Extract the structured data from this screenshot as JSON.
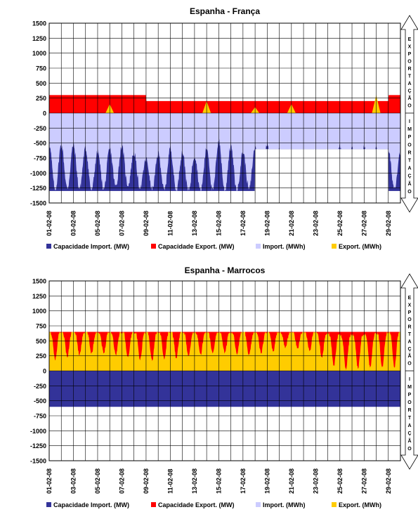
{
  "colors": {
    "import_capacity": "#333399",
    "export_capacity": "#ff0000",
    "import_flow": "#ccccff",
    "export_flow": "#ffcc00",
    "grid": "#000000"
  },
  "arrow_labels": {
    "up": "EXPORTAÇÃO",
    "down": "IMPORTAÇÃO"
  },
  "chart_data": [
    {
      "type": "area",
      "title": "Espanha - França",
      "xlabel": "",
      "ylabel": "",
      "ylim": [
        -1500,
        1500
      ],
      "yticks": [
        1500,
        1250,
        1000,
        750,
        500,
        250,
        0,
        -250,
        -500,
        -750,
        -1000,
        -1250,
        -1500
      ],
      "xlim": [
        "2008-02-01",
        "2008-03-01"
      ],
      "x_tick_labels": [
        "01-02-08",
        "03-02-08",
        "05-02-08",
        "07-02-08",
        "09-02-08",
        "11-02-08",
        "13-02-08",
        "15-02-08",
        "17-02-08",
        "19-02-08",
        "21-02-08",
        "23-02-08",
        "25-02-08",
        "27-02-08",
        "29-02-08"
      ],
      "grid": true,
      "legend_position": "bottom",
      "legend": [
        "Capacidade Import. (MW)",
        "Capacidade Export. (MW)",
        "Import. (MWh)",
        "Export. (MWh)"
      ],
      "series": [
        {
          "name": "Capacidade Import. (MW)",
          "kind": "constant",
          "value": -1300,
          "steps": [
            [
              "2008-02-01",
              -1300
            ],
            [
              "2008-02-18",
              -600
            ],
            [
              "2008-02-29",
              -1300
            ]
          ]
        },
        {
          "name": "Capacidade Export. (MW)",
          "kind": "constant",
          "value": 300,
          "steps": [
            [
              "2008-02-01",
              300
            ],
            [
              "2008-02-09",
              200
            ],
            [
              "2008-02-29",
              300
            ]
          ]
        },
        {
          "name": "Import. (MWh)",
          "kind": "daily_range",
          "dates": [
            "2008-02-01",
            "2008-02-03",
            "2008-02-05",
            "2008-02-07",
            "2008-02-09",
            "2008-02-11",
            "2008-02-13",
            "2008-02-15",
            "2008-02-17",
            "2008-02-19",
            "2008-02-21",
            "2008-02-23",
            "2008-02-25",
            "2008-02-27",
            "2008-02-29"
          ],
          "min": [
            -1300,
            -1250,
            -1300,
            -1200,
            -1280,
            -1300,
            -1300,
            -1300,
            -1300,
            -1200,
            -1250,
            -1300,
            -1300,
            -1280,
            -1250
          ],
          "max": [
            -100,
            -150,
            -300,
            -200,
            -500,
            -200,
            -400,
            0,
            -300,
            -100,
            -500,
            -500,
            -150,
            -200,
            -300
          ]
        },
        {
          "name": "Export. (MWh)",
          "kind": "daily_peaks",
          "dates": [
            "2008-02-06",
            "2008-02-14",
            "2008-02-18",
            "2008-02-21",
            "2008-02-28"
          ],
          "peaks": [
            150,
            200,
            100,
            150,
            300
          ]
        }
      ]
    },
    {
      "type": "area",
      "title": "Espanha - Marrocos",
      "xlabel": "",
      "ylabel": "",
      "ylim": [
        -1500,
        1500
      ],
      "yticks": [
        1500,
        1250,
        1000,
        750,
        500,
        250,
        0,
        -250,
        -500,
        -750,
        -1000,
        -1250,
        -1500
      ],
      "xlim": [
        "2008-02-01",
        "2008-03-01"
      ],
      "x_tick_labels": [
        "01-02-08",
        "03-02-08",
        "05-02-08",
        "07-02-08",
        "09-02-08",
        "11-02-08",
        "13-02-08",
        "15-02-08",
        "17-02-08",
        "19-02-08",
        "21-02-08",
        "23-02-08",
        "25-02-08",
        "27-02-08",
        "29-02-08"
      ],
      "grid": true,
      "legend_position": "bottom",
      "legend": [
        "Capacidade Import. (MW)",
        "Capacidade Export. (MW)",
        "Import. (MWh)",
        "Export. (MWh)"
      ],
      "series": [
        {
          "name": "Capacidade Import. (MW)",
          "kind": "constant",
          "value": -600
        },
        {
          "name": "Capacidade Export. (MW)",
          "kind": "constant",
          "value": 650
        },
        {
          "name": "Import. (MWh)",
          "kind": "constant",
          "value": 0
        },
        {
          "name": "Export. (MWh)",
          "kind": "daily_range",
          "dates": [
            "2008-02-01",
            "2008-02-03",
            "2008-02-05",
            "2008-02-07",
            "2008-02-09",
            "2008-02-11",
            "2008-02-13",
            "2008-02-15",
            "2008-02-17",
            "2008-02-19",
            "2008-02-21",
            "2008-02-23",
            "2008-02-25",
            "2008-02-27",
            "2008-02-29"
          ],
          "min": [
            150,
            250,
            300,
            250,
            150,
            200,
            250,
            300,
            250,
            300,
            400,
            300,
            0,
            50,
            50
          ],
          "max": [
            650,
            650,
            650,
            650,
            650,
            650,
            650,
            650,
            650,
            650,
            650,
            650,
            600,
            600,
            650
          ]
        }
      ]
    }
  ]
}
